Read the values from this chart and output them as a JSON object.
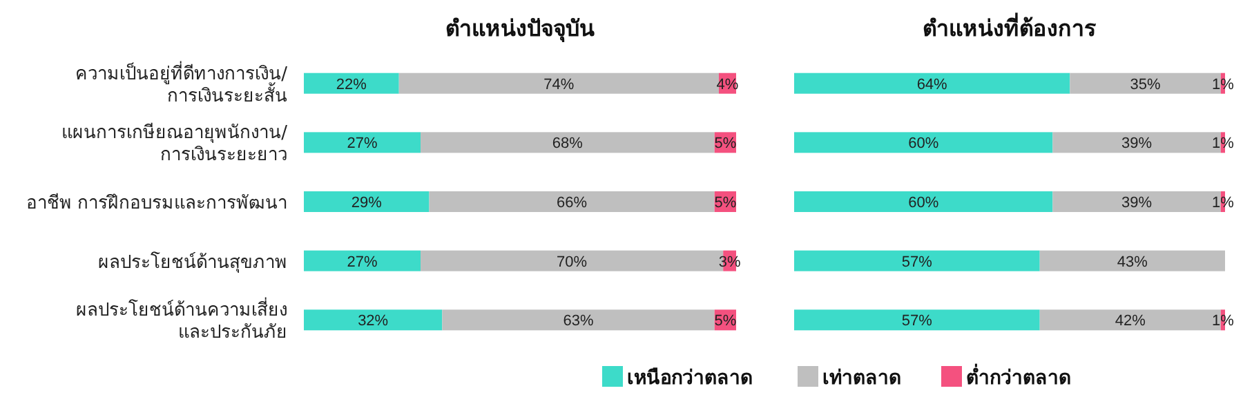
{
  "chart_data": [
    {
      "type": "bar",
      "orientation": "horizontal",
      "stacked": true,
      "title": "ตำแหน่งปัจจุบัน",
      "legend": false,
      "categories": [
        "ความเป็นอยู่ที่ดีทางการเงิน/\nการเงินระยะสั้น",
        "แผนการเกษียณอายุพนักงาน/\nการเงินระยะยาว",
        "อาชีพ การฝึกอบรมและการพัฒนา",
        "ผลประโยชน์ด้านสุขภาพ",
        "ผลประโยชน์ด้านความเสี่ยง\nและประกันภัย"
      ],
      "series": [
        {
          "color": "#3ddbc9",
          "values": [
            22,
            27,
            29,
            27,
            32
          ],
          "value_labels": [
            "22%",
            "27%",
            "29%",
            "27%",
            "32%"
          ]
        },
        {
          "color": "#bfbfbf",
          "values": [
            74,
            68,
            66,
            70,
            63
          ],
          "value_labels": [
            "74%",
            "68%",
            "66%",
            "70%",
            "63%"
          ]
        },
        {
          "color": "#f4517f",
          "values": [
            4,
            5,
            5,
            3,
            5
          ],
          "value_labels": [
            "4%",
            "5%",
            "5%",
            "3%",
            "5%"
          ]
        }
      ]
    },
    {
      "type": "bar",
      "orientation": "horizontal",
      "stacked": true,
      "title": "ตำแหน่งที่ต้องการ",
      "legend": "bottom",
      "categories": [
        null,
        null,
        null,
        null,
        null
      ],
      "series": [
        {
          "name": "เหนือกว่าตลาด",
          "color": "#3ddbc9",
          "values": [
            64,
            60,
            60,
            57,
            57
          ],
          "value_labels": [
            "64%",
            "60%",
            "60%",
            "57%",
            "57%"
          ]
        },
        {
          "name": "เท่าตลาด",
          "color": "#bfbfbf",
          "values": [
            35,
            39,
            39,
            43,
            42
          ],
          "value_labels": [
            "35%",
            "39%",
            "39%",
            "43%",
            "42%"
          ]
        },
        {
          "name": "ต่ำกว่าตลาด",
          "color": "#f4517f",
          "values": [
            1,
            1,
            1,
            null,
            1
          ],
          "value_labels": [
            "1%",
            "1%",
            "1%",
            null,
            "1%"
          ]
        }
      ]
    }
  ]
}
